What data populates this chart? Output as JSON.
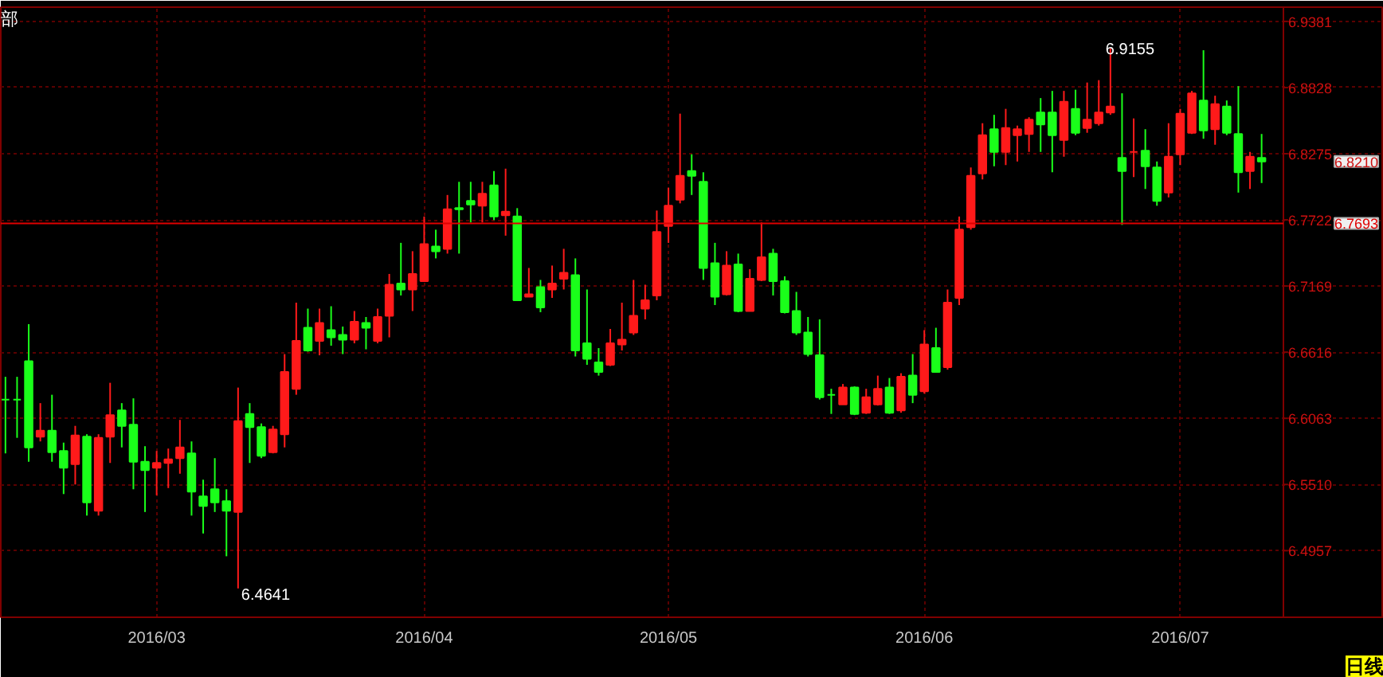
{
  "chart_data": {
    "type": "candlestick",
    "title": "部",
    "categories": [
      null,
      null,
      null,
      null,
      null,
      null,
      null,
      null,
      null,
      null,
      null,
      null,
      null,
      "2016/03",
      null,
      null,
      null,
      null,
      null,
      null,
      null,
      null,
      null,
      null,
      null,
      null,
      null,
      null,
      null,
      null,
      null,
      null,
      null,
      null,
      null,
      null,
      "2016/04",
      null,
      null,
      null,
      null,
      null,
      null,
      null,
      null,
      null,
      null,
      null,
      null,
      null,
      null,
      null,
      null,
      null,
      null,
      null,
      null,
      "2016/05",
      null,
      null,
      null,
      null,
      null,
      null,
      null,
      null,
      null,
      null,
      null,
      null,
      null,
      null,
      null,
      null,
      null,
      null,
      null,
      null,
      null,
      "2016/06",
      null,
      null,
      null,
      null,
      null,
      null,
      null,
      null,
      null,
      null,
      null,
      null,
      null,
      null,
      null,
      null,
      null,
      null,
      null,
      null,
      null,
      "2016/07",
      null,
      null,
      null,
      null,
      null,
      null,
      null
    ],
    "ohlc": [
      [
        6.622,
        6.641,
        6.577,
        6.622
      ],
      [
        6.622,
        6.641,
        6.59,
        6.622
      ],
      [
        6.654,
        6.685,
        6.57,
        6.582
      ],
      [
        6.591,
        6.619,
        6.587,
        6.596
      ],
      [
        6.596,
        6.626,
        6.57,
        6.578
      ],
      [
        6.579,
        6.586,
        6.543,
        6.565
      ],
      [
        6.568,
        6.6,
        6.551,
        6.592
      ],
      [
        6.591,
        6.593,
        6.525,
        6.536
      ],
      [
        6.529,
        6.593,
        6.525,
        6.59
      ],
      [
        6.591,
        6.636,
        6.569,
        6.609
      ],
      [
        6.613,
        6.619,
        6.582,
        6.6
      ],
      [
        6.601,
        6.623,
        6.547,
        6.57
      ],
      [
        6.57,
        6.583,
        6.528,
        6.563
      ],
      [
        6.565,
        6.579,
        6.542,
        6.569
      ],
      [
        6.569,
        6.581,
        6.548,
        6.572
      ],
      [
        6.573,
        6.605,
        6.56,
        6.582
      ],
      [
        6.577,
        6.587,
        6.525,
        6.545
      ],
      [
        6.541,
        6.555,
        6.51,
        6.533
      ],
      [
        6.547,
        6.573,
        6.528,
        6.536
      ],
      [
        6.537,
        6.547,
        6.491,
        6.529
      ],
      [
        6.528,
        6.632,
        6.4641,
        6.604
      ],
      [
        6.61,
        6.619,
        6.569,
        6.599
      ],
      [
        6.599,
        6.602,
        6.573,
        6.575
      ],
      [
        6.578,
        6.6,
        6.577,
        6.597
      ],
      [
        6.593,
        6.66,
        6.582,
        6.645
      ],
      [
        6.631,
        6.703,
        6.626,
        6.671
      ],
      [
        6.682,
        6.698,
        6.662,
        6.663
      ],
      [
        6.671,
        6.698,
        6.659,
        6.686
      ],
      [
        6.68,
        6.7,
        6.667,
        6.674
      ],
      [
        6.676,
        6.683,
        6.66,
        6.672
      ],
      [
        6.672,
        6.696,
        6.669,
        6.687
      ],
      [
        6.686,
        6.691,
        6.664,
        6.682
      ],
      [
        6.671,
        6.698,
        6.669,
        6.691
      ],
      [
        6.692,
        6.727,
        6.674,
        6.718
      ],
      [
        6.719,
        6.753,
        6.709,
        6.714
      ],
      [
        6.714,
        6.746,
        6.696,
        6.727
      ],
      [
        6.721,
        6.775,
        6.721,
        6.752
      ],
      [
        6.75,
        6.764,
        6.74,
        6.746
      ],
      [
        6.748,
        6.793,
        6.744,
        6.781
      ],
      [
        6.782,
        6.804,
        6.744,
        6.781
      ],
      [
        6.788,
        6.804,
        6.77,
        6.785
      ],
      [
        6.784,
        6.804,
        6.77,
        6.794
      ],
      [
        6.801,
        6.813,
        6.772,
        6.775
      ],
      [
        6.776,
        6.815,
        6.759,
        6.779
      ],
      [
        6.775,
        6.782,
        6.705,
        6.705
      ],
      [
        6.708,
        6.732,
        6.708,
        6.71
      ],
      [
        6.716,
        6.722,
        6.695,
        6.699
      ],
      [
        6.714,
        6.734,
        6.707,
        6.719
      ],
      [
        6.723,
        6.748,
        6.714,
        6.728
      ],
      [
        6.726,
        6.74,
        6.658,
        6.663
      ],
      [
        6.669,
        6.714,
        6.651,
        6.656
      ],
      [
        6.653,
        6.665,
        6.642,
        6.645
      ],
      [
        6.651,
        6.681,
        6.65,
        6.669
      ],
      [
        6.668,
        6.703,
        6.663,
        6.672
      ],
      [
        6.678,
        6.722,
        6.676,
        6.692
      ],
      [
        6.698,
        6.718,
        6.689,
        6.705
      ],
      [
        6.709,
        6.78,
        6.705,
        6.762
      ],
      [
        6.767,
        6.799,
        6.753,
        6.784
      ],
      [
        6.789,
        6.861,
        6.786,
        6.809
      ],
      [
        6.813,
        6.827,
        6.793,
        6.809
      ],
      [
        6.804,
        6.812,
        6.722,
        6.732
      ],
      [
        6.736,
        6.753,
        6.701,
        6.708
      ],
      [
        6.71,
        6.746,
        6.709,
        6.734
      ],
      [
        6.735,
        6.744,
        6.695,
        6.696
      ],
      [
        6.696,
        6.731,
        6.696,
        6.723
      ],
      [
        6.722,
        6.77,
        6.721,
        6.741
      ],
      [
        6.744,
        6.748,
        6.709,
        6.721
      ],
      [
        6.721,
        6.725,
        6.694,
        6.695
      ],
      [
        6.696,
        6.712,
        6.676,
        6.678
      ],
      [
        6.678,
        6.691,
        6.658,
        6.66
      ],
      [
        6.659,
        6.689,
        6.622,
        6.624
      ],
      [
        6.626,
        6.631,
        6.61,
        6.626
      ],
      [
        6.618,
        6.635,
        6.618,
        6.632
      ],
      [
        6.632,
        6.633,
        6.609,
        6.61
      ],
      [
        6.611,
        6.631,
        6.61,
        6.624
      ],
      [
        6.618,
        6.642,
        6.617,
        6.631
      ],
      [
        6.632,
        6.64,
        6.61,
        6.611
      ],
      [
        6.613,
        6.644,
        6.611,
        6.641
      ],
      [
        6.642,
        6.66,
        6.619,
        6.626
      ],
      [
        6.629,
        6.68,
        6.627,
        6.668
      ],
      [
        6.665,
        6.682,
        6.645,
        6.645
      ],
      [
        6.649,
        6.714,
        6.647,
        6.703
      ],
      [
        6.707,
        6.775,
        6.701,
        6.764
      ],
      [
        6.766,
        6.816,
        6.764,
        6.809
      ],
      [
        6.811,
        6.853,
        6.806,
        6.843
      ],
      [
        6.848,
        6.86,
        6.817,
        6.829
      ],
      [
        6.829,
        6.865,
        6.818,
        6.849
      ],
      [
        6.843,
        6.851,
        6.821,
        6.848
      ],
      [
        6.844,
        6.858,
        6.829,
        6.856
      ],
      [
        6.862,
        6.874,
        6.829,
        6.852
      ],
      [
        6.862,
        6.88,
        6.812,
        6.843
      ],
      [
        6.839,
        6.88,
        6.825,
        6.871
      ],
      [
        6.865,
        6.881,
        6.843,
        6.845
      ],
      [
        6.849,
        6.887,
        6.845,
        6.856
      ],
      [
        6.853,
        6.889,
        6.851,
        6.862
      ],
      [
        6.862,
        6.9155,
        6.86,
        6.867
      ],
      [
        6.824,
        6.878,
        6.768,
        6.813
      ],
      [
        6.829,
        6.857,
        6.808,
        6.829
      ],
      [
        6.83,
        6.848,
        6.798,
        6.817
      ],
      [
        6.816,
        6.821,
        6.784,
        6.788
      ],
      [
        6.795,
        6.853,
        6.791,
        6.825
      ],
      [
        6.827,
        6.865,
        6.818,
        6.861
      ],
      [
        6.845,
        6.88,
        6.844,
        6.878
      ],
      [
        6.872,
        6.914,
        6.84,
        6.847
      ],
      [
        6.848,
        6.876,
        6.835,
        6.869
      ],
      [
        6.867,
        6.872,
        6.843,
        6.845
      ],
      [
        6.844,
        6.884,
        6.795,
        6.812
      ],
      [
        6.813,
        6.829,
        6.798,
        6.825
      ],
      [
        6.824,
        6.844,
        6.803,
        6.821
      ]
    ],
    "colors": [
      "#1aff1a",
      "#1aff1a",
      "#1aff1a",
      "#ff1a1a",
      "#1aff1a",
      "#1aff1a",
      "#ff1a1a",
      "#1aff1a",
      "#ff1a1a",
      "#ff1a1a",
      "#1aff1a",
      "#1aff1a",
      "#1aff1a",
      "#ff1a1a",
      "#ff1a1a",
      "#ff1a1a",
      "#1aff1a",
      "#1aff1a",
      "#1aff1a",
      "#1aff1a",
      "#ff1a1a",
      "#1aff1a",
      "#1aff1a",
      "#ff1a1a",
      "#ff1a1a",
      "#ff1a1a",
      "#1aff1a",
      "#ff1a1a",
      "#1aff1a",
      "#1aff1a",
      "#ff1a1a",
      "#1aff1a",
      "#ff1a1a",
      "#ff1a1a",
      "#1aff1a",
      "#ff1a1a",
      "#ff1a1a",
      "#1aff1a",
      "#ff1a1a",
      "#1aff1a",
      "#1aff1a",
      "#ff1a1a",
      "#1aff1a",
      "#ff1a1a",
      "#1aff1a",
      "#ff1a1a",
      "#1aff1a",
      "#ff1a1a",
      "#ff1a1a",
      "#1aff1a",
      "#1aff1a",
      "#1aff1a",
      "#ff1a1a",
      "#ff1a1a",
      "#ff1a1a",
      "#ff1a1a",
      "#ff1a1a",
      "#ff1a1a",
      "#ff1a1a",
      "#1aff1a",
      "#1aff1a",
      "#1aff1a",
      "#ff1a1a",
      "#1aff1a",
      "#ff1a1a",
      "#ff1a1a",
      "#1aff1a",
      "#1aff1a",
      "#1aff1a",
      "#1aff1a",
      "#1aff1a",
      "#1aff1a",
      "#ff1a1a",
      "#1aff1a",
      "#ff1a1a",
      "#ff1a1a",
      "#1aff1a",
      "#ff1a1a",
      "#1aff1a",
      "#ff1a1a",
      "#1aff1a",
      "#ff1a1a",
      "#ff1a1a",
      "#ff1a1a",
      "#ff1a1a",
      "#1aff1a",
      "#ff1a1a",
      "#ff1a1a",
      "#ff1a1a",
      "#1aff1a",
      "#1aff1a",
      "#ff1a1a",
      "#1aff1a",
      "#ff1a1a",
      "#ff1a1a",
      "#ff1a1a",
      "#1aff1a",
      "#ff1a1a",
      "#1aff1a",
      "#1aff1a",
      "#ff1a1a",
      "#ff1a1a",
      "#ff1a1a",
      "#1aff1a",
      "#ff1a1a",
      "#1aff1a",
      "#1aff1a",
      "#ff1a1a",
      "#1aff1a"
    ],
    "ylim": [
      6.44,
      6.95
    ],
    "yticks": [
      {
        "value": 6.4957,
        "label": "6.4957"
      },
      {
        "value": 6.551,
        "label": "6.5510"
      },
      {
        "value": 6.6063,
        "label": "6.6063"
      },
      {
        "value": 6.6616,
        "label": "6.6616"
      },
      {
        "value": 6.7169,
        "label": "6.7169"
      },
      {
        "value": 6.7722,
        "label": "6.7722"
      },
      {
        "value": 6.8275,
        "label": "6.8275"
      },
      {
        "value": 6.8828,
        "label": "6.8828"
      },
      {
        "value": 6.9381,
        "label": "6.9381"
      }
    ],
    "grid": true,
    "ref_lines": [
      {
        "axis": "y",
        "value": 6.7693,
        "label": "6.7693",
        "color": "#e00000"
      }
    ],
    "annotations": [
      "6.4641",
      "6.9155",
      "6.8210",
      "日线"
    ]
  }
}
